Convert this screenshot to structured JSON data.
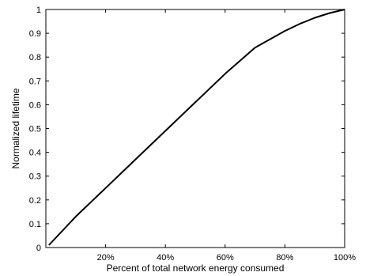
{
  "chart_data": {
    "type": "line",
    "xlabel": "Percent of total network energy consumed",
    "ylabel": "Normalized lifetime",
    "xlim": [
      0,
      100
    ],
    "ylim": [
      0,
      1
    ],
    "grid": false,
    "x_ticks": [
      {
        "value": 20,
        "label": "20%"
      },
      {
        "value": 40,
        "label": "40%"
      },
      {
        "value": 60,
        "label": "60%"
      },
      {
        "value": 80,
        "label": "80%"
      },
      {
        "value": 100,
        "label": "100%"
      }
    ],
    "y_ticks": [
      {
        "value": 0,
        "label": "0"
      },
      {
        "value": 0.1,
        "label": "0.1"
      },
      {
        "value": 0.2,
        "label": "0.2"
      },
      {
        "value": 0.3,
        "label": "0.3"
      },
      {
        "value": 0.4,
        "label": "0.4"
      },
      {
        "value": 0.5,
        "label": "0.5"
      },
      {
        "value": 0.6,
        "label": "0.6"
      },
      {
        "value": 0.7,
        "label": "0.7"
      },
      {
        "value": 0.8,
        "label": "0.8"
      },
      {
        "value": 0.9,
        "label": "0.9"
      },
      {
        "value": 1,
        "label": "1"
      }
    ],
    "series": [
      {
        "color": "#000000",
        "x": [
          1,
          10,
          20,
          30,
          40,
          50,
          60,
          70,
          80,
          85,
          90,
          95,
          100
        ],
        "y": [
          0.01,
          0.13,
          0.25,
          0.37,
          0.49,
          0.61,
          0.73,
          0.84,
          0.91,
          0.94,
          0.965,
          0.985,
          1.0
        ]
      }
    ]
  }
}
